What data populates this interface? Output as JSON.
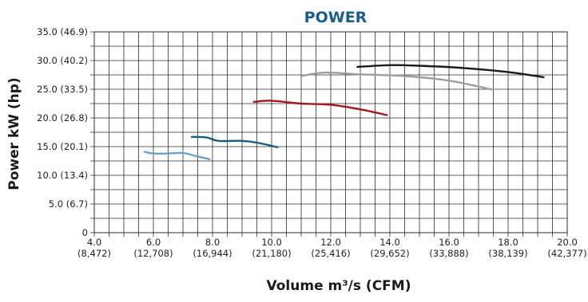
{
  "chart_data": {
    "type": "line",
    "title": "POWER",
    "xlabel": "Volume m³/s (CFM)",
    "ylabel": "Power kW (hp)",
    "xlim": [
      4.0,
      20.0
    ],
    "ylim": [
      0,
      35
    ],
    "grid": true,
    "colors": {
      "title": "#1a5c8a",
      "grid": "#2b2b2b"
    },
    "x_ticks": [
      {
        "value": 4.0,
        "label": "4.0",
        "sublabel": "(8,472)"
      },
      {
        "value": 6.0,
        "label": "6.0",
        "sublabel": "(12,708)"
      },
      {
        "value": 8.0,
        "label": "8.0",
        "sublabel": "(16,944)"
      },
      {
        "value": 10.0,
        "label": "10.0",
        "sublabel": "(21,180)"
      },
      {
        "value": 12.0,
        "label": "12.0",
        "sublabel": "(25,416)"
      },
      {
        "value": 14.0,
        "label": "14.0",
        "sublabel": "(29,652)"
      },
      {
        "value": 16.0,
        "label": "16.0",
        "sublabel": "(33,888)"
      },
      {
        "value": 18.0,
        "label": "18.0",
        "sublabel": "(38,139)"
      },
      {
        "value": 20.0,
        "label": "20.0",
        "sublabel": "(42,377)"
      }
    ],
    "y_ticks": [
      {
        "value": 0,
        "label": "0"
      },
      {
        "value": 5,
        "label": "5.0 (6.7)"
      },
      {
        "value": 10,
        "label": "10.0 (13.4)"
      },
      {
        "value": 15,
        "label": "15.0 (20.1)"
      },
      {
        "value": 20,
        "label": "20.0 (26.8)"
      },
      {
        "value": 25,
        "label": "25.0 (33.5)"
      },
      {
        "value": 30,
        "label": "30.0 (40.2)"
      },
      {
        "value": 35,
        "label": "35.0 (46.9)"
      }
    ],
    "series": [
      {
        "color": "#6aa3c8",
        "x": [
          5.7,
          6.0,
          6.5,
          7.0,
          7.4,
          7.9
        ],
        "y": [
          14.1,
          13.8,
          13.8,
          13.9,
          13.4,
          12.8
        ]
      },
      {
        "color": "#1a5c80",
        "x": [
          7.3,
          7.8,
          8.2,
          9.0,
          9.5,
          10.2
        ],
        "y": [
          16.7,
          16.6,
          16.0,
          16.0,
          15.7,
          14.9
        ]
      },
      {
        "color": "#a3161d",
        "x": [
          9.4,
          10.0,
          11.0,
          12.0,
          13.0,
          13.9
        ],
        "y": [
          22.8,
          23.0,
          22.5,
          22.3,
          21.5,
          20.5
        ]
      },
      {
        "color": "#9e9e9e",
        "x": [
          11.0,
          11.8,
          13.0,
          14.5,
          16.0,
          17.5
        ],
        "y": [
          27.3,
          27.9,
          27.6,
          27.3,
          26.5,
          24.9
        ]
      },
      {
        "color": "#1a1a1a",
        "x": [
          12.9,
          14.0,
          15.0,
          16.5,
          18.0,
          19.2
        ],
        "y": [
          28.9,
          29.2,
          29.1,
          28.7,
          28.0,
          27.1
        ]
      }
    ]
  }
}
